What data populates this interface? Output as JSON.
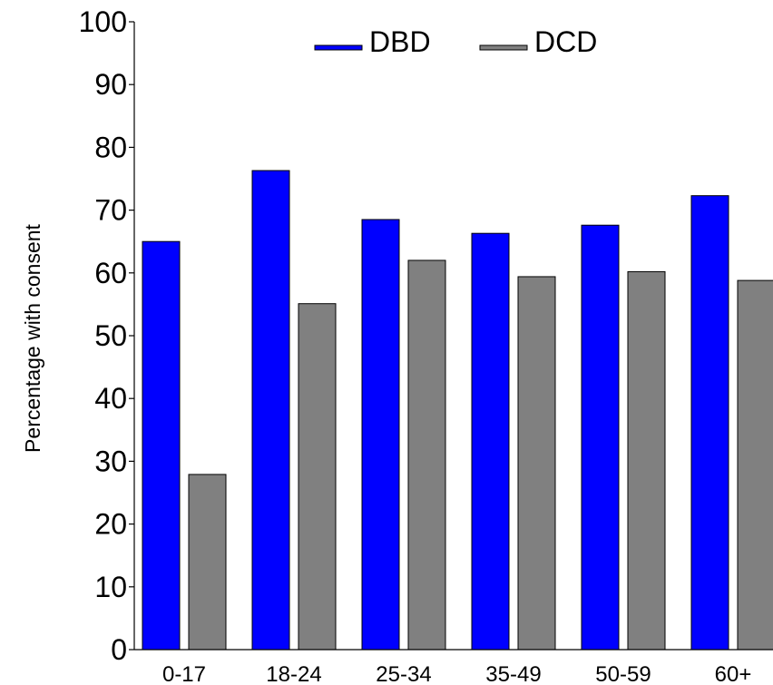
{
  "chart_data": {
    "type": "bar",
    "title": "",
    "xlabel": "",
    "ylabel": "Percentage with consent",
    "ylim": [
      0,
      100
    ],
    "yticks": [
      0,
      10,
      20,
      30,
      40,
      50,
      60,
      70,
      80,
      90,
      100
    ],
    "categories": [
      "0-17",
      "18-24",
      "25-34",
      "35-49",
      "50-59",
      "60+"
    ],
    "series": [
      {
        "name": "DBD",
        "color": "#0000ff",
        "values": [
          65,
          76.3,
          68.5,
          66.3,
          67.6,
          72.3
        ]
      },
      {
        "name": "DCD",
        "color": "#808080",
        "values": [
          27.9,
          55.1,
          62,
          59.4,
          60.2,
          58.8
        ]
      }
    ],
    "legend": "top-center",
    "grid": false
  }
}
